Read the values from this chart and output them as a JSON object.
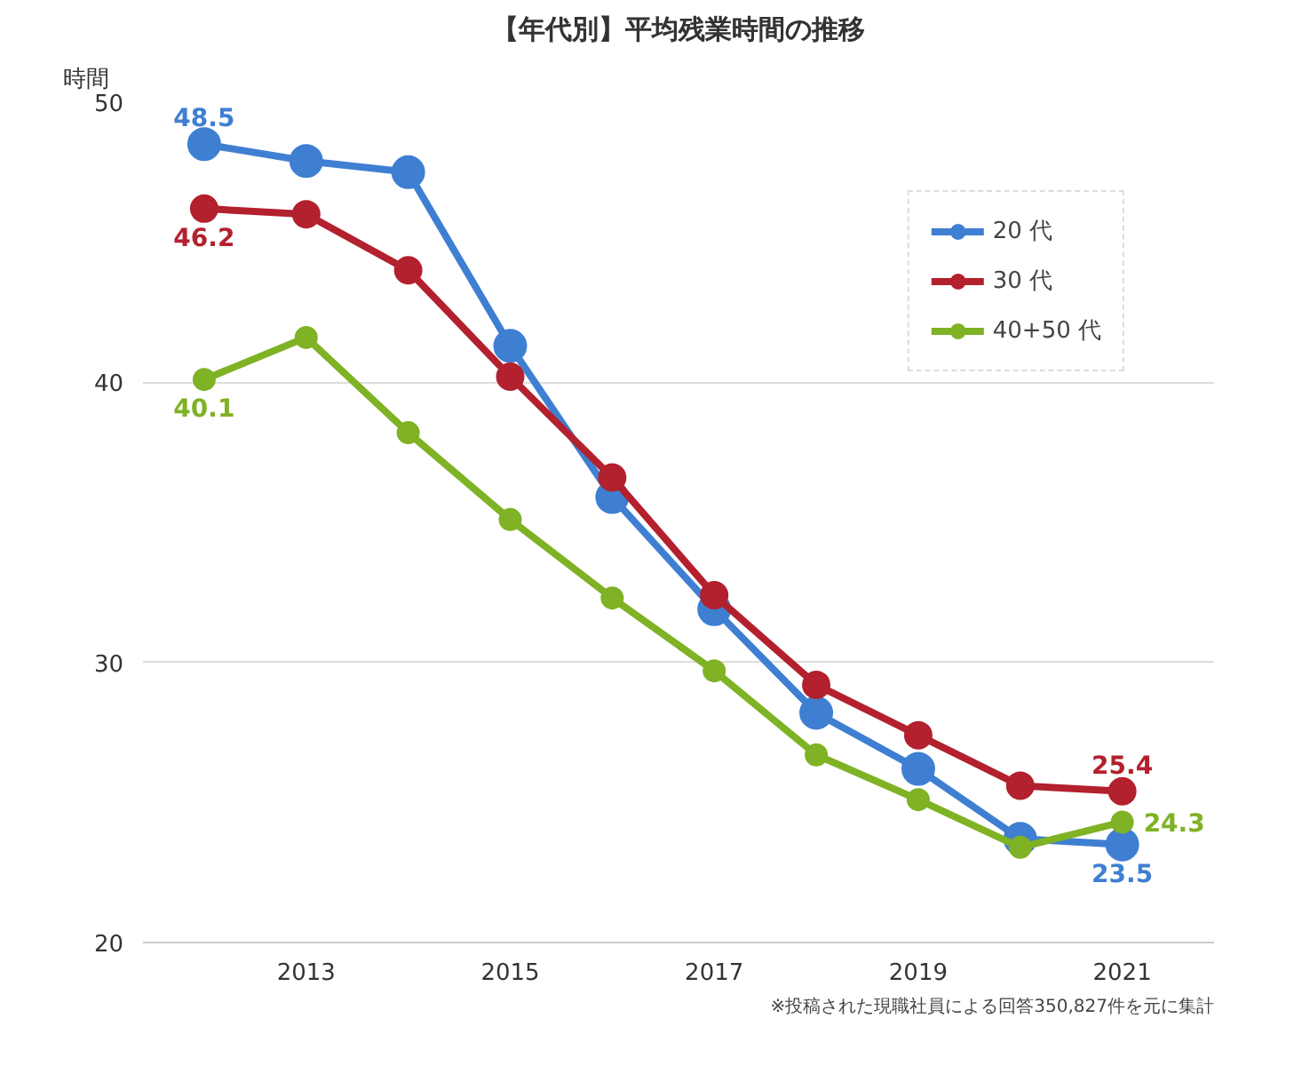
{
  "chart_data": {
    "type": "line",
    "title": "【年代別】平均残業時間の推移",
    "ylabel": "時間",
    "x": [
      2012,
      2013,
      2014,
      2015,
      2016,
      2017,
      2018,
      2019,
      2020,
      2021
    ],
    "series": [
      {
        "name": "20 代",
        "color": "#3f7fd2",
        "values": [
          48.5,
          47.9,
          47.5,
          41.3,
          35.9,
          31.9,
          28.2,
          26.2,
          23.7,
          23.5
        ],
        "value_labels": [
          "48.5",
          null,
          null,
          null,
          null,
          null,
          null,
          null,
          null,
          "23.5"
        ]
      },
      {
        "name": "30 代",
        "color": "#b3202e",
        "values": [
          46.2,
          46.0,
          44.0,
          40.2,
          36.6,
          32.4,
          29.2,
          27.4,
          25.6,
          25.4
        ],
        "value_labels": [
          "46.2",
          null,
          null,
          null,
          null,
          null,
          null,
          null,
          null,
          "25.4"
        ]
      },
      {
        "name": "40+50 代",
        "color": "#7fb224",
        "values": [
          40.1,
          41.6,
          38.2,
          35.1,
          32.3,
          29.7,
          26.7,
          25.1,
          23.4,
          24.3
        ],
        "value_labels": [
          "40.1",
          null,
          null,
          null,
          null,
          null,
          null,
          null,
          null,
          "24.3"
        ]
      }
    ],
    "xlim": [
      2011.4,
      2021.9
    ],
    "xticks": [
      2013,
      2015,
      2017,
      2019,
      2021
    ],
    "ylim": [
      20,
      50
    ],
    "yticks": [
      20,
      30,
      40,
      50
    ],
    "grid": "y",
    "legend": "top right",
    "marker": "circle",
    "line_style": "solid",
    "annotations": [
      "※投稿された現職社員による回答350,827件を元に集計"
    ]
  }
}
